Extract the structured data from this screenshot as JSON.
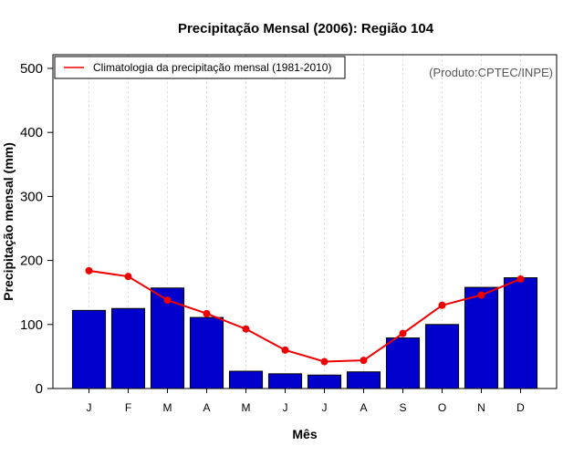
{
  "chart_data": {
    "type": "bar",
    "title": "Precipitação Mensal (2006): Região 104",
    "xlabel": "Mês",
    "ylabel": "Precipitação mensal (mm)",
    "categories": [
      "J",
      "F",
      "M",
      "A",
      "M",
      "J",
      "J",
      "A",
      "S",
      "O",
      "N",
      "D"
    ],
    "ylim": [
      0,
      500
    ],
    "yticks": [
      "0",
      "100",
      "200",
      "300",
      "400",
      "500"
    ],
    "grid": "vertical-dotted",
    "series": [
      {
        "name": "Precipitação mensal 2006",
        "type": "bar",
        "color": "#0000CD",
        "values": [
          122,
          125,
          157,
          111,
          27,
          23,
          21,
          26,
          79,
          100,
          158,
          173
        ]
      },
      {
        "name": "Climatologia da precipitação mensal (1981-2010)",
        "type": "line",
        "color": "#EE0000",
        "values": [
          184,
          175,
          138,
          117,
          93,
          60,
          42,
          44,
          86,
          130,
          146,
          171
        ]
      }
    ],
    "legend": {
      "position": "top-left",
      "entries": [
        "Climatologia da precipitação mensal (1981-2010)"
      ]
    },
    "annotation": "(Produto:CPTEC/INPE)"
  }
}
